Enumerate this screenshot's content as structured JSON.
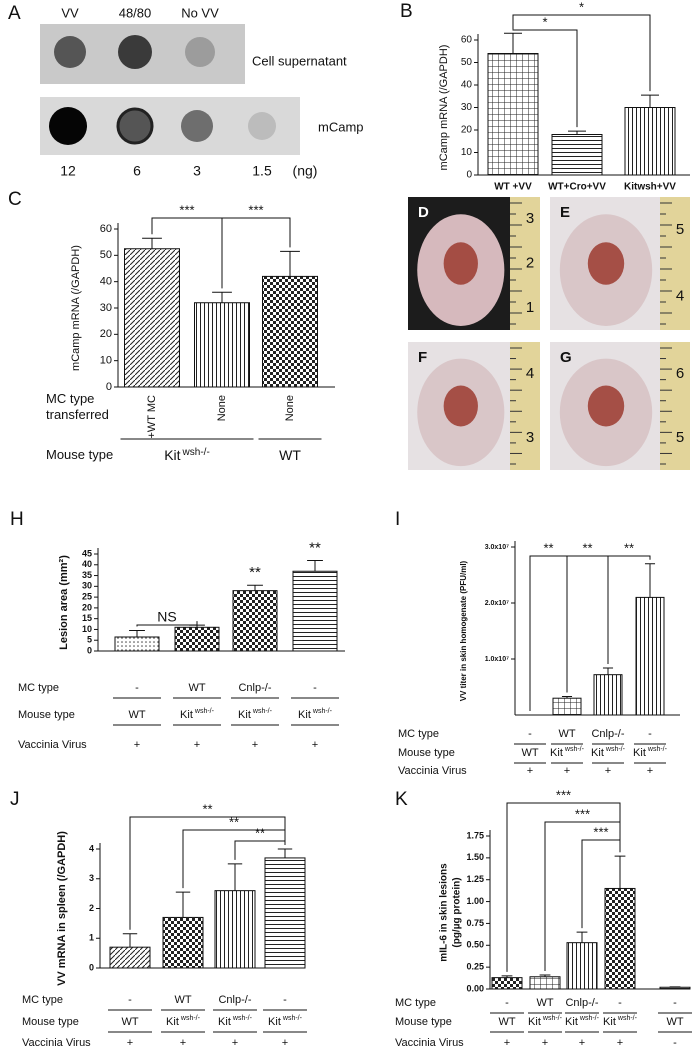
{
  "panel_a": {
    "letter": "A",
    "columns": [
      "VV",
      "48/80",
      "No VV"
    ],
    "row_labels": [
      "Cell supernatant",
      "mCamp"
    ],
    "amounts": [
      12,
      6,
      3,
      1.5
    ],
    "unit": "(ng)"
  },
  "photos": [
    {
      "letter": "D",
      "ruler": [
        3,
        2,
        1
      ]
    },
    {
      "letter": "E",
      "ruler": [
        5,
        4
      ]
    },
    {
      "letter": "F",
      "ruler": [
        4,
        3
      ]
    },
    {
      "letter": "G",
      "ruler": [
        6,
        5
      ]
    }
  ],
  "chart_data": [
    {
      "type": "bar",
      "panel": "B",
      "ylabel": "mCamp mRNA (/GAPDH)",
      "categories": [
        "WT +VV",
        "WT+Cro+VV",
        "Kitwsh+VV"
      ],
      "values": [
        54,
        18,
        30
      ],
      "errors": [
        9,
        1.5,
        5.5
      ],
      "ylim": [
        0,
        60
      ],
      "yticks": [
        0,
        10,
        20,
        30,
        40,
        50,
        60
      ],
      "brackets": [
        {
          "text": "*",
          "between": [
            0,
            2
          ]
        },
        {
          "text": "*",
          "between": [
            0,
            1
          ]
        }
      ]
    },
    {
      "type": "bar",
      "panel": "C",
      "ylabel": "mCamp mRNA (/GAPDH)",
      "categories": [
        "+WT MC",
        "None",
        "None"
      ],
      "values": [
        52.5,
        32,
        42
      ],
      "errors": [
        4,
        4,
        9.5
      ],
      "ylim": [
        0,
        60
      ],
      "yticks": [
        0,
        10,
        20,
        30,
        40,
        50,
        60
      ],
      "brackets": [
        {
          "text": "***",
          "between": [
            0,
            1
          ]
        },
        {
          "text": "***",
          "between": [
            1,
            2
          ]
        }
      ],
      "rows": [
        {
          "label": "MC type transferred"
        },
        {
          "label": "Mouse type",
          "cells": [
            {
              "text": "Kit",
              "sup": "wsh-/-",
              "span": [
                0,
                1
              ]
            },
            {
              "text": "WT",
              "span": [
                2
              ]
            }
          ]
        }
      ]
    },
    {
      "type": "bar",
      "panel": "H",
      "ylabel": "Lesion area (mm²)",
      "values": [
        6.5,
        11,
        28,
        37
      ],
      "errors": [
        3,
        1,
        2.5,
        5
      ],
      "ylim": [
        0,
        45
      ],
      "yticks": [
        0,
        5,
        10,
        15,
        20,
        25,
        30,
        35,
        40,
        45
      ],
      "brackets": [
        {
          "text": "NS",
          "between": [
            0,
            1
          ]
        },
        {
          "text": "**",
          "between": [
            2
          ]
        },
        {
          "text": "**",
          "between": [
            3
          ]
        }
      ],
      "rows": [
        {
          "label": "MC type",
          "cells": [
            "-",
            "WT",
            "Cnlp-/-",
            "-"
          ]
        },
        {
          "label": "Mouse type",
          "cells": [
            {
              "text": "WT"
            },
            {
              "text": "Kit",
              "sup": "wsh-/-"
            },
            {
              "text": "Kit",
              "sup": "wsh-/-"
            },
            {
              "text": "Kit",
              "sup": "wsh-/-"
            }
          ]
        },
        {
          "label": "Vaccinia Virus",
          "cells": [
            "+",
            "+",
            "+",
            "+"
          ]
        }
      ]
    },
    {
      "type": "bar",
      "panel": "I",
      "ylabel": "VV titer in skin homogenate (PFU/ml)",
      "values": [
        0,
        3000000,
        7200000,
        21000000
      ],
      "errors": [
        null,
        300000,
        1200000,
        6000000
      ],
      "ylim": [
        0,
        30000000
      ],
      "yticks": [
        {
          "value": 10000000,
          "label": "1.0x10⁷"
        },
        {
          "value": 20000000,
          "label": "2.0x10⁷"
        },
        {
          "value": 30000000,
          "label": "3.0x10⁷"
        }
      ],
      "brackets": [
        {
          "text": "**",
          "between": [
            0,
            1
          ]
        },
        {
          "text": "**",
          "between": [
            1,
            2
          ]
        },
        {
          "text": "**",
          "between": [
            2,
            3
          ]
        }
      ],
      "rows": [
        {
          "label": "MC type",
          "cells": [
            "-",
            "WT",
            "Cnlp-/-",
            "-"
          ]
        },
        {
          "label": "Mouse type",
          "cells": [
            {
              "text": "WT"
            },
            {
              "text": "Kit",
              "sup": "wsh-/-"
            },
            {
              "text": "Kit",
              "sup": "wsh-/-"
            },
            {
              "text": "Kit",
              "sup": "wsh-/-"
            }
          ]
        },
        {
          "label": "Vaccinia Virus",
          "cells": [
            "+",
            "+",
            "+",
            "+"
          ]
        }
      ]
    },
    {
      "type": "bar",
      "panel": "J",
      "ylabel": "VV mRNA in spleen (/GAPDH)",
      "values": [
        0.7,
        1.7,
        2.6,
        3.7
      ],
      "errors": [
        0.45,
        0.85,
        0.9,
        0.3
      ],
      "ylim": [
        0,
        4
      ],
      "yticks": [
        0,
        1,
        2,
        3,
        4
      ],
      "brackets": [
        {
          "text": "**",
          "between": [
            0,
            3
          ]
        },
        {
          "text": "**",
          "between": [
            1,
            3
          ]
        },
        {
          "text": "**",
          "between": [
            2,
            3
          ]
        }
      ],
      "rows": [
        {
          "label": "MC type",
          "cells": [
            "-",
            "WT",
            "Cnlp-/-",
            "-"
          ]
        },
        {
          "label": "Mouse type",
          "cells": [
            {
              "text": "WT"
            },
            {
              "text": "Kit",
              "sup": "wsh-/-"
            },
            {
              "text": "Kit",
              "sup": "wsh-/-"
            },
            {
              "text": "Kit",
              "sup": "wsh-/-"
            }
          ]
        },
        {
          "label": "Vaccinia Virus",
          "cells": [
            "+",
            "+",
            "+",
            "+"
          ]
        }
      ]
    },
    {
      "type": "bar",
      "panel": "K",
      "ylabel": [
        "mIL-6 in skin lesions",
        "(pg/µg protein)"
      ],
      "values": [
        0.13,
        0.14,
        0.53,
        1.15,
        0.02
      ],
      "errors": [
        0.02,
        0.02,
        0.12,
        0.37,
        0.005
      ],
      "ylim": [
        0,
        1.75
      ],
      "yticks": [
        {
          "value": 0,
          "label": "0.00"
        },
        0.25,
        {
          "value": 0.5,
          "label": "0.50"
        },
        0.75,
        {
          "value": 1,
          "label": "1.00"
        },
        1.25,
        {
          "value": 1.5,
          "label": "1.50"
        },
        1.75
      ],
      "brackets": [
        {
          "text": "***",
          "between": [
            0,
            3
          ]
        },
        {
          "text": "***",
          "between": [
            1,
            3
          ]
        },
        {
          "text": "***",
          "between": [
            2,
            3
          ]
        }
      ],
      "rows": [
        {
          "label": "MC type",
          "cells": [
            "-",
            "WT",
            "Cnlp-/-",
            "-",
            "-"
          ]
        },
        {
          "label": "Mouse type",
          "cells": [
            {
              "text": "WT"
            },
            {
              "text": "Kit",
              "sup": "wsh-/-"
            },
            {
              "text": "Kit",
              "sup": "wsh-/-"
            },
            {
              "text": "Kit",
              "sup": "wsh-/-"
            },
            {
              "text": "WT"
            }
          ]
        },
        {
          "label": "Vaccinia Virus",
          "cells": [
            "+",
            "+",
            "+",
            "+",
            "-"
          ]
        }
      ]
    }
  ]
}
